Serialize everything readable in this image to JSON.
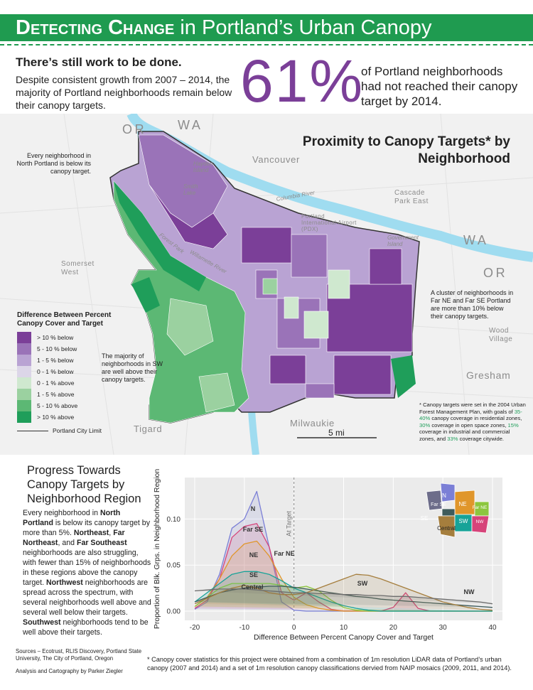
{
  "header": {
    "title_runs": [
      {
        "text": "Detecting Change",
        "bold": true,
        "smallcaps": true
      },
      {
        "text": " in Portland’s Urban Canopy"
      }
    ]
  },
  "intro": {
    "heading": "There’s still work to be done.",
    "text": "Despite consistent growth from 2007 – 2014, the majority of Portland neighborhoods remain below their canopy targets.",
    "stat": "61%",
    "stat_text": "of Portland neighborhoods had not reached their canopy target by 2014."
  },
  "map": {
    "title": "Proximity to Canopy Targets* by Neighborhood",
    "labels": [
      "OR",
      "WA",
      "Vancouver",
      "Hayden Island",
      "Smith Lake",
      "Columbia River",
      "Portland International Airport (PDX)",
      "Cascade Park East",
      "Government Island",
      "WA",
      "OR",
      "Somerset West",
      "Forest Park",
      "Willamette River",
      "Wood Village",
      "Gresham",
      "Tigard",
      "Milwaukie"
    ],
    "annotations": [
      "Every neighborhood in North Portland is below its canopy target.",
      "A cluster of neighborhoods in Far NE and Far SE Portland are more than 10% below their canopy targets.",
      "The majority of neighborhoods in SW are well above their canopy targets."
    ],
    "legend": {
      "title": "Difference Between Percent Canopy Cover and Target",
      "items": [
        {
          "label": "> 10 % below",
          "color": "#7b3f98"
        },
        {
          "label": "5 - 10 % below",
          "color": "#9a73b8"
        },
        {
          "label": "1 - 5 % below",
          "color": "#b9a3d3"
        },
        {
          "label": "0 - 1 % below",
          "color": "#dcd6e8"
        },
        {
          "label": "0 - 1 % above",
          "color": "#cfe8cf"
        },
        {
          "label": "1 - 5 % above",
          "color": "#9bd1a0"
        },
        {
          "label": "5 - 10 % above",
          "color": "#5cb874"
        },
        {
          "label": "> 10 % above",
          "color": "#1f9e5a"
        }
      ],
      "boundary": "Portland City Limit"
    },
    "scale": "5 mi",
    "footnote_runs": [
      {
        "text": "* Canopy targets were set in the 2004 Urban Forest Management Plan, with goals of "
      },
      {
        "text": "35-40%",
        "color": "#1f9e5a"
      },
      {
        "text": " canopy coverage in residential zones, "
      },
      {
        "text": "30%",
        "color": "#1f9e5a"
      },
      {
        "text": " coverage in open space zones, "
      },
      {
        "text": "15%",
        "color": "#1f9e5a"
      },
      {
        "text": " coverage in industrial and commercial zones, and "
      },
      {
        "text": "33%",
        "color": "#1f9e5a"
      },
      {
        "text": " coverage citywide."
      }
    ]
  },
  "chart_data": {
    "type": "line",
    "title": "Progress Towards Canopy Targets by Neighborhood Region",
    "x_label": "Difference Between Percent Canopy Cover and Target",
    "y_label": "Proportion of Blk. Grps. in Neighborhood Region",
    "annotation": "At Target",
    "x": [
      -20,
      -17.5,
      -15,
      -12.5,
      -10,
      -7.5,
      -5,
      -2.5,
      0,
      2.5,
      5,
      7.5,
      10,
      12.5,
      15,
      17.5,
      20,
      22.5,
      25,
      27.5,
      30,
      32.5,
      35,
      37.5,
      40
    ],
    "series": [
      {
        "name": "N",
        "color": "#7b7fd6",
        "values": [
          0.002,
          0.01,
          0.04,
          0.09,
          0.1,
          0.13,
          0.07,
          0.01,
          0.001,
          0,
          0,
          0,
          0,
          0,
          0,
          0,
          0,
          0,
          0,
          0,
          0,
          0,
          0,
          0,
          0
        ]
      },
      {
        "name": "Far SE",
        "color": "#d6447a",
        "values": [
          0.003,
          0.012,
          0.035,
          0.08,
          0.092,
          0.095,
          0.07,
          0.02,
          0.012,
          0.02,
          0.01,
          0.002,
          0,
          0,
          0,
          0,
          0.004,
          0.02,
          0.003,
          0,
          0,
          0,
          0,
          0,
          0
        ]
      },
      {
        "name": "NE",
        "color": "#e0962b",
        "values": [
          0.005,
          0.015,
          0.035,
          0.06,
          0.073,
          0.076,
          0.06,
          0.035,
          0.015,
          0.007,
          0.003,
          0.001,
          0,
          0,
          0,
          0,
          0,
          0,
          0,
          0,
          0,
          0,
          0,
          0,
          0
        ]
      },
      {
        "name": "Far NE",
        "color": "#8cc63e",
        "values": [
          0.005,
          0.015,
          0.025,
          0.03,
          0.03,
          0.03,
          0.03,
          0.028,
          0.025,
          0.027,
          0.022,
          0.012,
          0.004,
          0.001,
          0,
          0,
          0,
          0,
          0,
          0,
          0,
          0,
          0,
          0,
          0
        ]
      },
      {
        "name": "SE",
        "color": "#17a398",
        "values": [
          0.01,
          0.02,
          0.03,
          0.04,
          0.043,
          0.043,
          0.04,
          0.033,
          0.025,
          0.02,
          0.015,
          0.01,
          0.006,
          0.003,
          0.001,
          0,
          0,
          0,
          0,
          0,
          0,
          0,
          0,
          0,
          0
        ]
      },
      {
        "name": "Central",
        "color": "#3f5b5b",
        "values": [
          0.01,
          0.015,
          0.02,
          0.023,
          0.025,
          0.026,
          0.027,
          0.027,
          0.026,
          0.024,
          0.022,
          0.02,
          0.018,
          0.016,
          0.015,
          0.013,
          0.012,
          0.011,
          0.01,
          0.009,
          0.008,
          0.007,
          0.006,
          0.005,
          0.004
        ]
      },
      {
        "name": "SW",
        "color": "#a57e3d",
        "values": [
          0.008,
          0.014,
          0.02,
          0.025,
          0.028,
          0.025,
          0.02,
          0.018,
          0.018,
          0.02,
          0.025,
          0.03,
          0.035,
          0.04,
          0.039,
          0.035,
          0.03,
          0.025,
          0.02,
          0.015,
          0.01,
          0.007,
          0.004,
          0.002,
          0.001
        ]
      },
      {
        "name": "NW",
        "color": "#6d6d6d",
        "values": [
          0.022,
          0.023,
          0.024,
          0.024,
          0.024,
          0.023,
          0.022,
          0.021,
          0.02,
          0.02,
          0.019,
          0.019,
          0.018,
          0.018,
          0.017,
          0.017,
          0.016,
          0.016,
          0.015,
          0.014,
          0.013,
          0.012,
          0.011,
          0.01,
          0.008
        ]
      }
    ],
    "xlim": [
      -22,
      42
    ],
    "ylim": [
      -0.01,
      0.145
    ],
    "xticks": [
      -20,
      -10,
      0,
      10,
      20,
      30,
      40
    ],
    "yticks": [
      {
        "value": 0,
        "label": "0.00"
      },
      {
        "value": 0.05,
        "label": "0.05"
      },
      {
        "value": 0.1,
        "label": "0.10"
      }
    ],
    "grid": true
  },
  "sidebar_runs": [
    {
      "text": "Every neighborhood in "
    },
    {
      "text": "North Portland",
      "bold": true
    },
    {
      "text": " is below its canopy target by more than 5%. "
    },
    {
      "text": "Northeast",
      "bold": true
    },
    {
      "text": ", "
    },
    {
      "text": "Far Northeast",
      "bold": true
    },
    {
      "text": ", and "
    },
    {
      "text": "Far Southeast",
      "bold": true
    },
    {
      "text": " neighborhoods are also struggling, with fewer than 15% of neighborhoods in these regions above the canopy target. "
    },
    {
      "text": "Northwest",
      "bold": true
    },
    {
      "text": " neighborhoods are spread across the spectrum, with several neighborhoods well above and several well below their targets. "
    },
    {
      "text": "Southwest",
      "bold": true
    },
    {
      "text": " neighborhoods tend to be well above their targets."
    }
  ],
  "sources": "Sources – Ecotrust, RLIS Discovery, Portland State University, The City of Portland, Oregon",
  "credit": "Analysis and Cartography by Parker Ziegler",
  "footnote": "* Canopy cover statistics for this project were obtained from a combination of 1m resolution LiDAR data of Portland’s urban canopy (2007 and 2014) and a set of 1m resolution canopy classifications dervied from NAIP mosaics (2009, 2011, and 2014)."
}
